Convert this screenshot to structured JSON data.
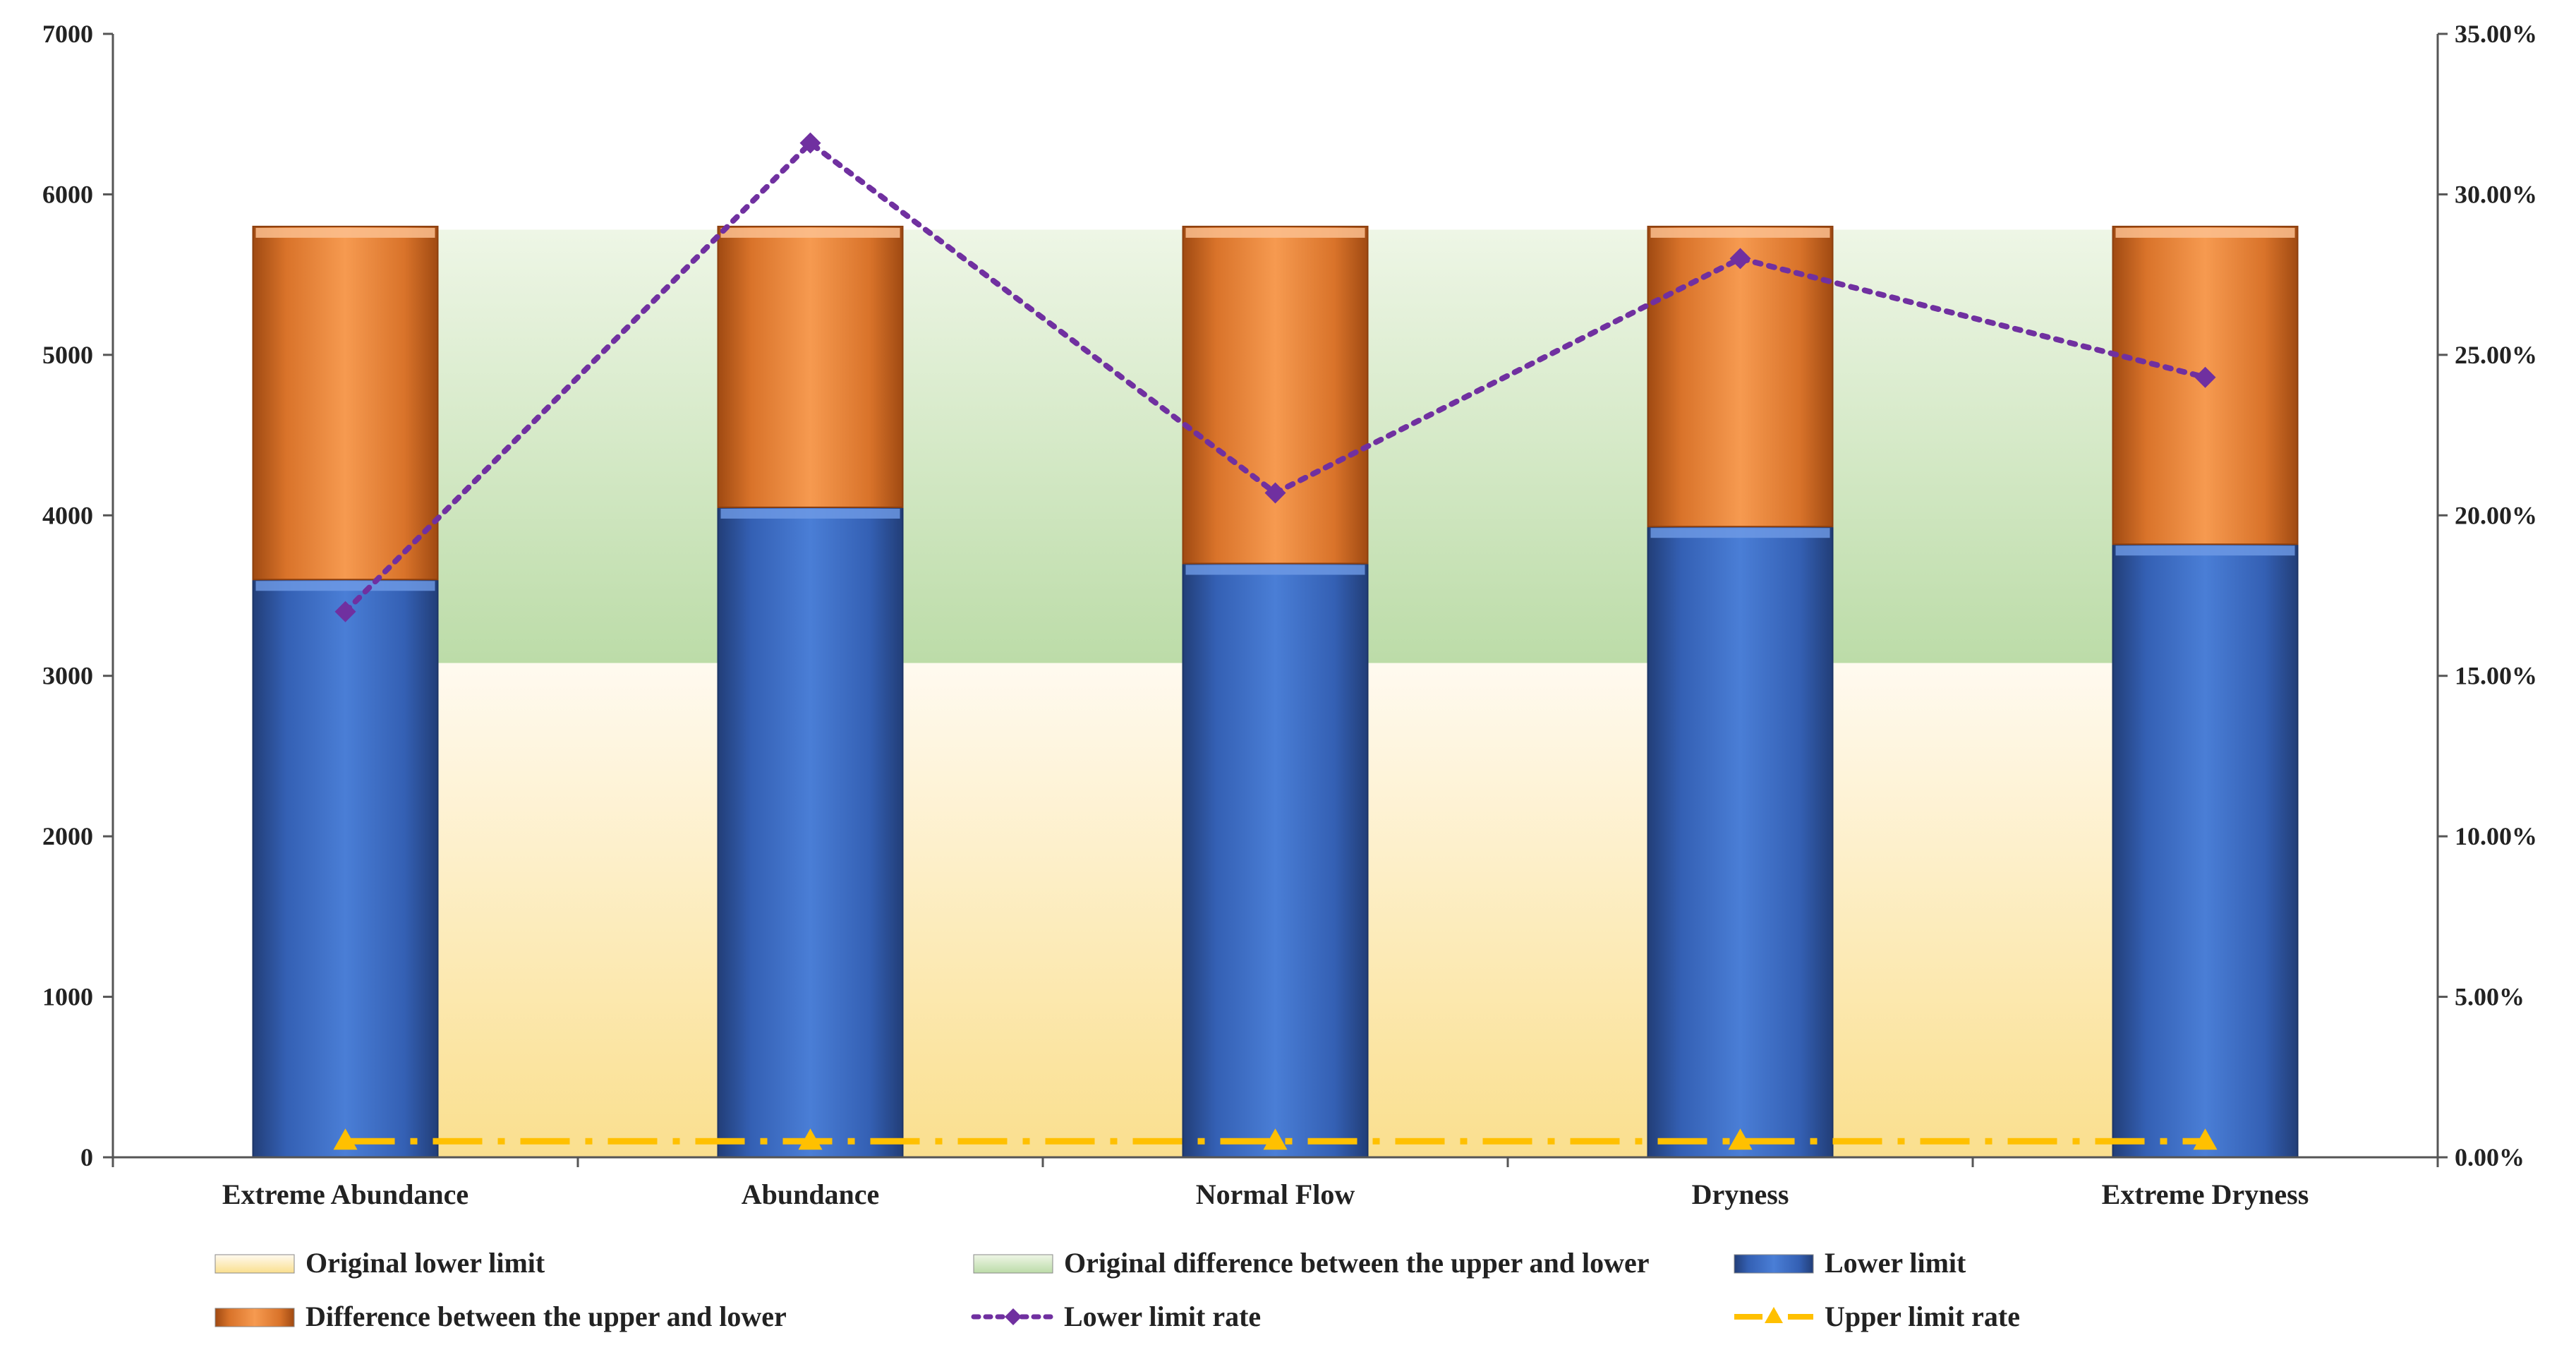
{
  "chart_data": {
    "type": "bar",
    "categories": [
      "Extreme Abundance",
      "Abundance",
      "Normal Flow",
      "Dryness",
      "Extreme Dryness"
    ],
    "y_left": {
      "min": 0,
      "max": 7000,
      "ticks": [
        "0",
        "1000",
        "2000",
        "3000",
        "4000",
        "5000",
        "6000",
        "7000"
      ]
    },
    "y_right": {
      "min": 0,
      "max": 35,
      "ticks": [
        "0.00%",
        "5.00%",
        "10.00%",
        "15.00%",
        "20.00%",
        "25.00%",
        "30.00%",
        "35.00%"
      ]
    },
    "series": [
      {
        "name": "Original lower limit",
        "kind": "area",
        "axis": "left",
        "values": [
          3080,
          3080,
          3080,
          3080,
          3080
        ],
        "color": "#fbe3a0"
      },
      {
        "name": "Original difference between the upper and lower",
        "kind": "area",
        "axis": "left",
        "values": [
          2700,
          2700,
          2700,
          2700,
          2700
        ],
        "color": "#c5e0b4"
      },
      {
        "name": "Lower limit",
        "kind": "stacked-bar",
        "axis": "left",
        "values": [
          3600,
          4050,
          3700,
          3930,
          3820
        ],
        "color": "#3b6cc4"
      },
      {
        "name": "Difference between the upper and lower",
        "kind": "stacked-bar",
        "axis": "left",
        "values": [
          2200,
          1750,
          2100,
          1870,
          1980
        ],
        "color": "#ef8b3c"
      },
      {
        "name": "Lower limit rate",
        "kind": "line",
        "axis": "right",
        "values": [
          17.0,
          31.6,
          20.7,
          28.0,
          24.3
        ],
        "color": "#7030a0"
      },
      {
        "name": "Upper limit rate",
        "kind": "line",
        "axis": "right",
        "values": [
          0.5,
          0.5,
          0.5,
          0.5,
          0.5
        ],
        "color": "#ffc000"
      }
    ],
    "legend_placement": "bottom",
    "grid": false
  }
}
